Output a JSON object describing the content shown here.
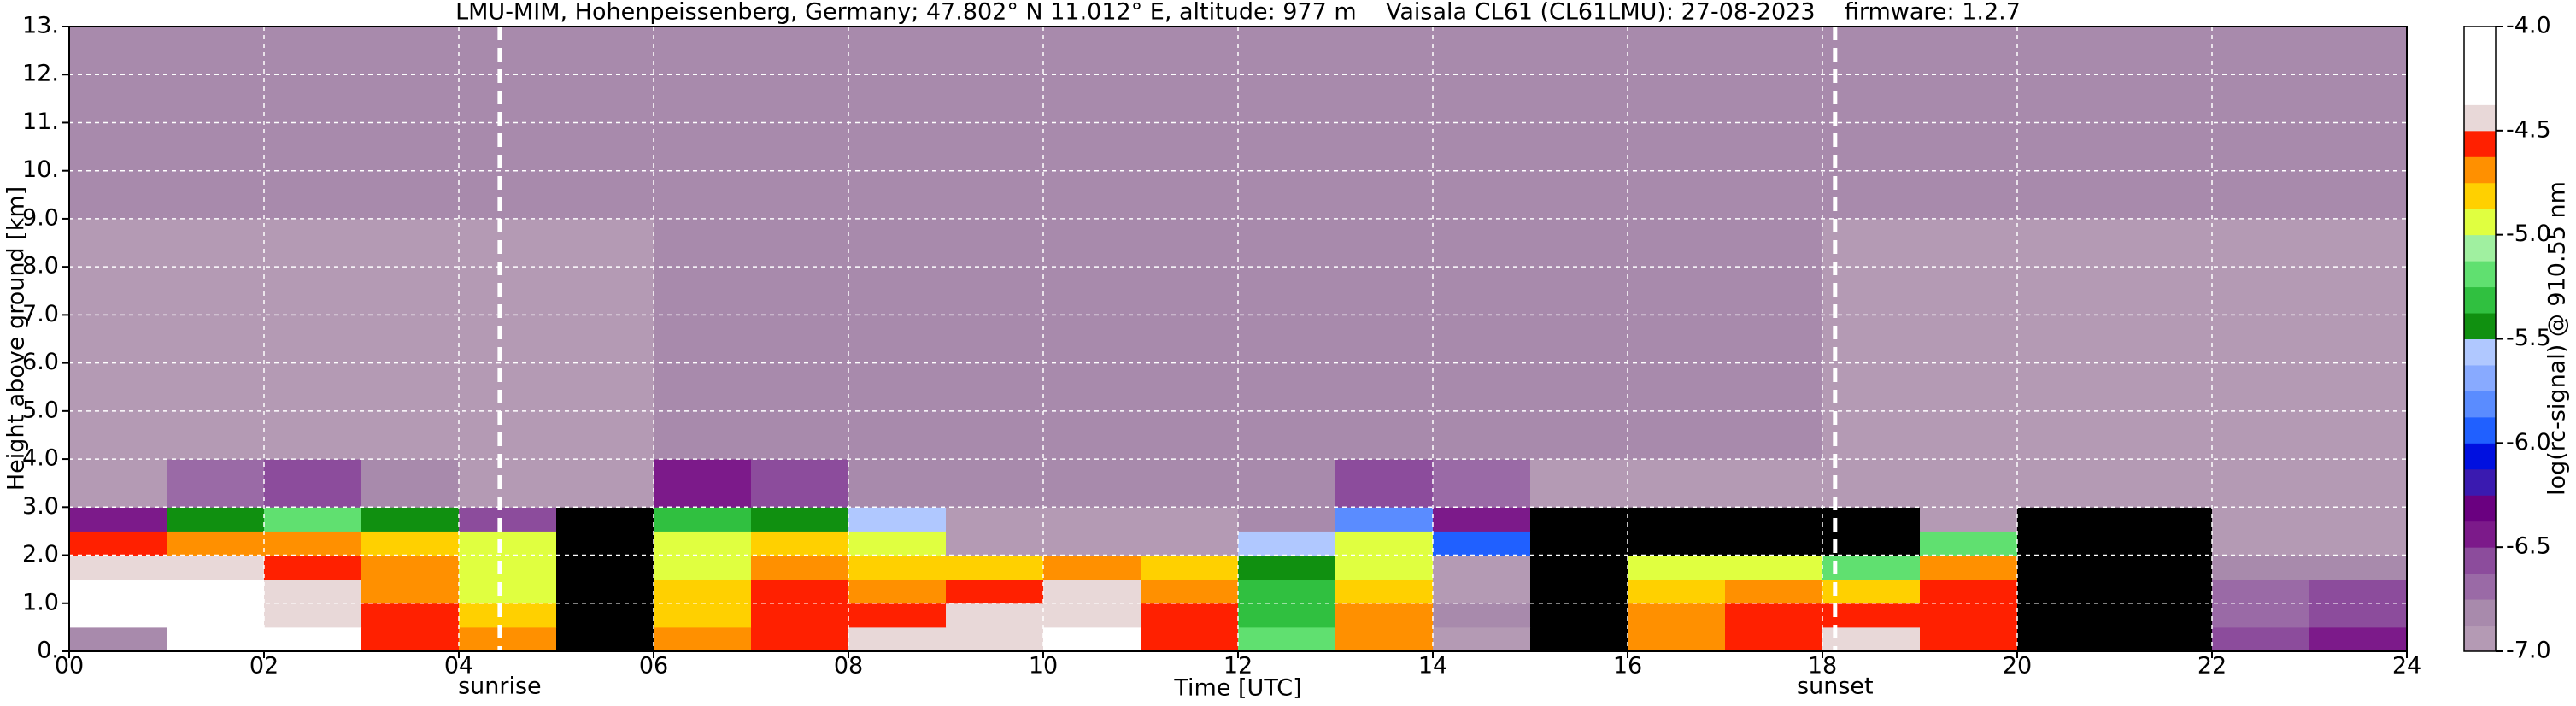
{
  "chart_data": {
    "type": "heatmap",
    "title": "LMU-MIM, Hohenpeissenberg, Germany; 47.802° N 11.012° E, altitude: 977 m    Vaisala CL61 (CL61LMU): 27-08-2023    firmware: 1.2.7",
    "x_label": "Time [UTC]",
    "y_label": "Height above ground [km]",
    "xlim": [
      0,
      24
    ],
    "ylim": [
      0,
      13
    ],
    "xticks": [
      {
        "value": 0,
        "label": "00"
      },
      {
        "value": 2,
        "label": "02"
      },
      {
        "value": 4,
        "label": "04"
      },
      {
        "value": 6,
        "label": "06"
      },
      {
        "value": 8,
        "label": "08"
      },
      {
        "value": 10,
        "label": "10"
      },
      {
        "value": 12,
        "label": "12"
      },
      {
        "value": 14,
        "label": "14"
      },
      {
        "value": 16,
        "label": "16"
      },
      {
        "value": 18,
        "label": "18"
      },
      {
        "value": 20,
        "label": "20"
      },
      {
        "value": 22,
        "label": "22"
      },
      {
        "value": 24,
        "label": "24"
      }
    ],
    "yticks": [
      {
        "value": 0,
        "label": "0."
      },
      {
        "value": 1,
        "label": "1.0"
      },
      {
        "value": 2,
        "label": "2.0"
      },
      {
        "value": 3,
        "label": "3.0"
      },
      {
        "value": 4,
        "label": "4.0"
      },
      {
        "value": 5,
        "label": "5.0"
      },
      {
        "value": 6,
        "label": "6.0"
      },
      {
        "value": 7,
        "label": "7.0"
      },
      {
        "value": 8,
        "label": "8.0"
      },
      {
        "value": 9,
        "label": "9.0"
      },
      {
        "value": 10,
        "label": "10."
      },
      {
        "value": 11,
        "label": "11."
      },
      {
        "value": 12,
        "label": "12."
      },
      {
        "value": 13,
        "label": "13."
      }
    ],
    "grid": true,
    "grid_color": "#ffffff",
    "annotations": [
      {
        "text": "sunrise",
        "x": 4.42
      },
      {
        "text": "sunset",
        "x": 18.13
      }
    ],
    "x_edges": [
      0,
      1,
      2,
      3,
      4,
      5,
      6,
      7,
      8,
      9,
      10,
      11,
      12,
      13,
      14,
      15,
      16,
      17,
      18,
      19,
      20,
      21,
      22,
      23,
      24
    ],
    "y_edges": [
      0,
      0.5,
      1,
      1.5,
      2,
      2.5,
      3,
      4,
      6,
      9,
      13
    ],
    "z": [
      [
        -6.8,
        -4.2,
        -4.3,
        -4.6,
        -4.7,
        -7.2,
        -4.7,
        -4.6,
        -4.5,
        -4.4,
        -4.3,
        -4.6,
        -5.2,
        -4.7,
        -6.9,
        -7.2,
        -4.7,
        -4.6,
        -4.5,
        -4.6,
        -7.2,
        -7.2,
        -6.6,
        -6.5
      ],
      [
        -4.3,
        -4.3,
        -4.4,
        -4.6,
        -4.8,
        -7.2,
        -4.8,
        -4.6,
        -4.6,
        -4.5,
        -4.4,
        -4.6,
        -5.3,
        -4.7,
        -6.8,
        -7.2,
        -4.7,
        -4.6,
        -4.6,
        -4.6,
        -7.2,
        -7.2,
        -6.7,
        -6.6
      ],
      [
        -4.3,
        -4.3,
        -4.5,
        -4.7,
        -4.9,
        -7.2,
        -4.8,
        -4.6,
        -4.7,
        -4.6,
        -4.5,
        -4.7,
        -5.3,
        -4.8,
        -6.9,
        -7.2,
        -4.8,
        -4.7,
        -4.8,
        -4.6,
        -7.2,
        -7.2,
        -6.7,
        -6.6
      ],
      [
        -4.4,
        -4.5,
        -4.6,
        -4.7,
        -4.9,
        -7.2,
        -4.9,
        -4.7,
        -4.8,
        -4.8,
        -4.7,
        -4.8,
        -5.4,
        -4.9,
        -6.9,
        -7.2,
        -4.9,
        -5.0,
        -5.2,
        -4.7,
        -7.2,
        -7.2,
        -6.8,
        -6.8
      ],
      [
        -4.6,
        -4.7,
        -4.7,
        -4.8,
        -5.0,
        -7.2,
        -5.0,
        -4.8,
        -5.0,
        -6.9,
        -7.0,
        -6.9,
        -5.6,
        -5.0,
        -6.0,
        -7.2,
        -7.1,
        -7.1,
        -7.1,
        -5.2,
        -7.2,
        -7.2,
        -6.9,
        -6.9
      ],
      [
        -6.5,
        -5.4,
        -5.2,
        -5.5,
        -6.6,
        -7.1,
        -5.3,
        -5.4,
        -5.6,
        -6.9,
        -7.0,
        -6.9,
        -6.8,
        -5.8,
        -6.5,
        -7.1,
        -7.1,
        -7.1,
        -7.1,
        -6.9,
        -7.1,
        -7.1,
        -7.0,
        -7.0
      ],
      [
        -6.9,
        -6.7,
        -6.6,
        -6.8,
        -6.9,
        -7.0,
        -6.4,
        -6.6,
        -6.8,
        -6.8,
        -6.8,
        -6.8,
        -6.8,
        -6.6,
        -6.7,
        -6.9,
        -6.9,
        -7.0,
        -7.0,
        -7.0,
        -7.0,
        -7.0,
        -7.0,
        -7.0
      ],
      [
        -6.9,
        -6.9,
        -6.9,
        -6.9,
        -6.9,
        -6.9,
        -6.8,
        -6.8,
        -6.8,
        -6.8,
        -6.8,
        -6.8,
        -6.8,
        -6.8,
        -6.8,
        -6.8,
        -6.8,
        -6.8,
        -6.9,
        -6.9,
        -6.9,
        -6.9,
        -6.9,
        -6.9
      ],
      [
        -6.9,
        -6.9,
        -6.9,
        -6.9,
        -6.9,
        -6.9,
        -6.8,
        -6.8,
        -6.8,
        -6.8,
        -6.8,
        -6.8,
        -6.8,
        -6.8,
        -6.8,
        -6.8,
        -6.8,
        -6.8,
        -6.9,
        -6.9,
        -6.9,
        -6.9,
        -6.9,
        -6.9
      ],
      [
        -6.8,
        -6.8,
        -6.8,
        -6.8,
        -6.8,
        -6.8,
        -6.8,
        -6.8,
        -6.8,
        -6.8,
        -6.8,
        -6.8,
        -6.8,
        -6.8,
        -6.8,
        -6.8,
        -6.8,
        -6.8,
        -6.8,
        -6.8,
        -6.8,
        -6.8,
        -6.8,
        -6.8
      ]
    ],
    "colorbar": {
      "label": "log(rc-signal) @ 910.55 nm",
      "levels": [
        -7.0,
        -6.875,
        -6.75,
        -6.625,
        -6.5,
        -6.375,
        -6.25,
        -6.125,
        -6.0,
        -5.875,
        -5.75,
        -5.625,
        -5.5,
        -5.375,
        -5.25,
        -5.125,
        -5.0,
        -4.875,
        -4.75,
        -4.625,
        -4.5,
        -4.375,
        -4.25,
        -4.125,
        -4.0
      ],
      "colors": [
        "#b49ab4",
        "#a88aac",
        "#9a6aa6",
        "#8c4c9c",
        "#7c1a8a",
        "#6a0080",
        "#3a1ab0",
        "#0010e0",
        "#2060ff",
        "#5a8cff",
        "#88aaff",
        "#b0c8ff",
        "#109010",
        "#30c040",
        "#60e070",
        "#a0f0a0",
        "#e0ff40",
        "#ffd000",
        "#ff9000",
        "#ff2000",
        "#e8d8d8",
        "#ffffff",
        "#ffffff",
        "#ffffff"
      ],
      "under_color": "#000000",
      "over_color": "#ffffff",
      "ticks": [
        {
          "value": -7,
          "label": "-7.0"
        },
        {
          "value": -6.5,
          "label": "-6.5"
        },
        {
          "value": -6,
          "label": "-6.0"
        },
        {
          "value": -5.5,
          "label": "-5.5"
        },
        {
          "value": -5,
          "label": "-5.0"
        },
        {
          "value": -4.5,
          "label": "-4.5"
        },
        {
          "value": -4,
          "label": "-4.0"
        }
      ]
    }
  }
}
